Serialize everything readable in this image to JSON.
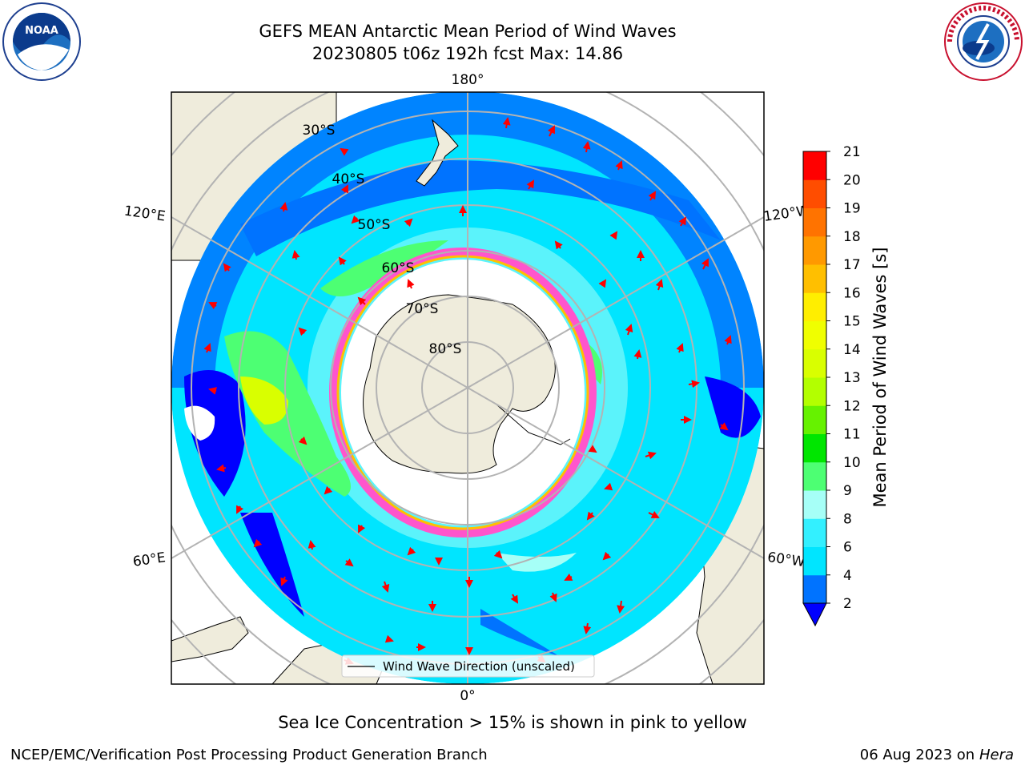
{
  "header": {
    "title_line1": "GEFS MEAN Antarctic Mean Period of Wind Waves",
    "title_line2": "20230805 t06z 192h fcst   Max: 14.86"
  },
  "map": {
    "longitude_labels": {
      "top": "180°",
      "bottom": "0°",
      "upper_left": "120°E",
      "upper_right": "120°W",
      "lower_left": "60°E",
      "lower_right": "60°W"
    },
    "latitude_labels": [
      "30°S",
      "40°S",
      "50°S",
      "60°S",
      "70°S",
      "80°S"
    ],
    "legend_label": "Wind Wave Direction (unscaled)"
  },
  "colorbar": {
    "label": "Mean Period of Wind Waves [s]",
    "ticks": [
      "2",
      "4",
      "6",
      "8",
      "9",
      "10",
      "11",
      "12",
      "13",
      "14",
      "15",
      "16",
      "17",
      "18",
      "19",
      "20",
      "21"
    ],
    "colors": [
      "#0073ff",
      "#00e5ff",
      "#33f0ff",
      "#a6fff7",
      "#4dff73",
      "#00e600",
      "#66f200",
      "#b3ff00",
      "#d9ff00",
      "#f0ff00",
      "#ffee00",
      "#ffbf00",
      "#ff9900",
      "#ff7300",
      "#ff4d00",
      "#ff0000"
    ],
    "extend_color": "#0000ff"
  },
  "footer": {
    "note": "Sea Ice Concentration > 15% is shown in pink to yellow",
    "credit": "NCEP/EMC/Verification Post Processing Product Generation Branch",
    "date": "06 Aug 2023 on",
    "host": "Hera"
  }
}
